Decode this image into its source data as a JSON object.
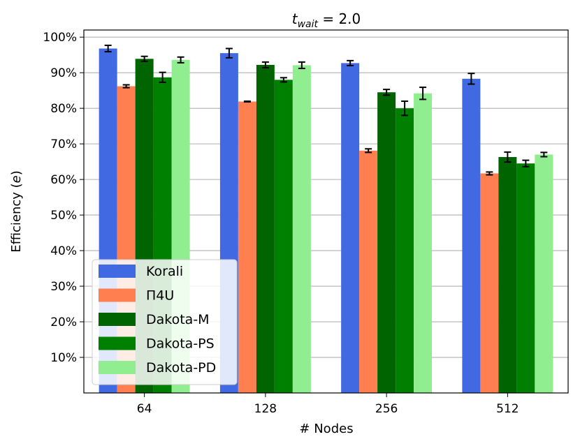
{
  "chart_data": {
    "type": "bar",
    "title": "t_wait = 2.0",
    "title_parts": {
      "symbol": "t",
      "subscript": "wait",
      "rest": " = 2.0"
    },
    "xlabel": "# Nodes",
    "ylabel": "Efficiency (e)",
    "ylabel_parts": {
      "prefix": "Efficiency (",
      "var": "e",
      "suffix": ")"
    },
    "categories": [
      "64",
      "128",
      "256",
      "512"
    ],
    "ylim": [
      0,
      102
    ],
    "yticks": [
      10,
      20,
      30,
      40,
      50,
      60,
      70,
      80,
      90,
      100
    ],
    "ytick_labels": [
      "10%",
      "20%",
      "30%",
      "40%",
      "50%",
      "60%",
      "70%",
      "80%",
      "90%",
      "100%"
    ],
    "grid": "horizontal",
    "legend_position": "lower-left",
    "series": [
      {
        "name": "Korali",
        "color": "#4169e1",
        "values": [
          96.8,
          95.5,
          92.7,
          88.3
        ],
        "errors": [
          0.9,
          1.3,
          0.7,
          1.5
        ]
      },
      {
        "name": "Π4U",
        "color": "#ff7f50",
        "values": [
          86.2,
          81.9,
          68.1,
          61.7
        ],
        "errors": [
          0.4,
          0.1,
          0.5,
          0.4
        ]
      },
      {
        "name": "Dakota-M",
        "color": "#006400",
        "values": [
          93.9,
          92.2,
          84.5,
          66.3
        ],
        "errors": [
          0.7,
          0.8,
          0.8,
          1.4
        ]
      },
      {
        "name": "Dakota-PS",
        "color": "#008000",
        "values": [
          88.7,
          88.0,
          80.0,
          64.5
        ],
        "errors": [
          1.4,
          0.6,
          2.0,
          0.9
        ]
      },
      {
        "name": "Dakota-PD",
        "color": "#90ee90",
        "values": [
          93.6,
          92.1,
          84.2,
          67.0
        ],
        "errors": [
          0.8,
          0.9,
          1.7,
          0.6
        ]
      }
    ]
  }
}
